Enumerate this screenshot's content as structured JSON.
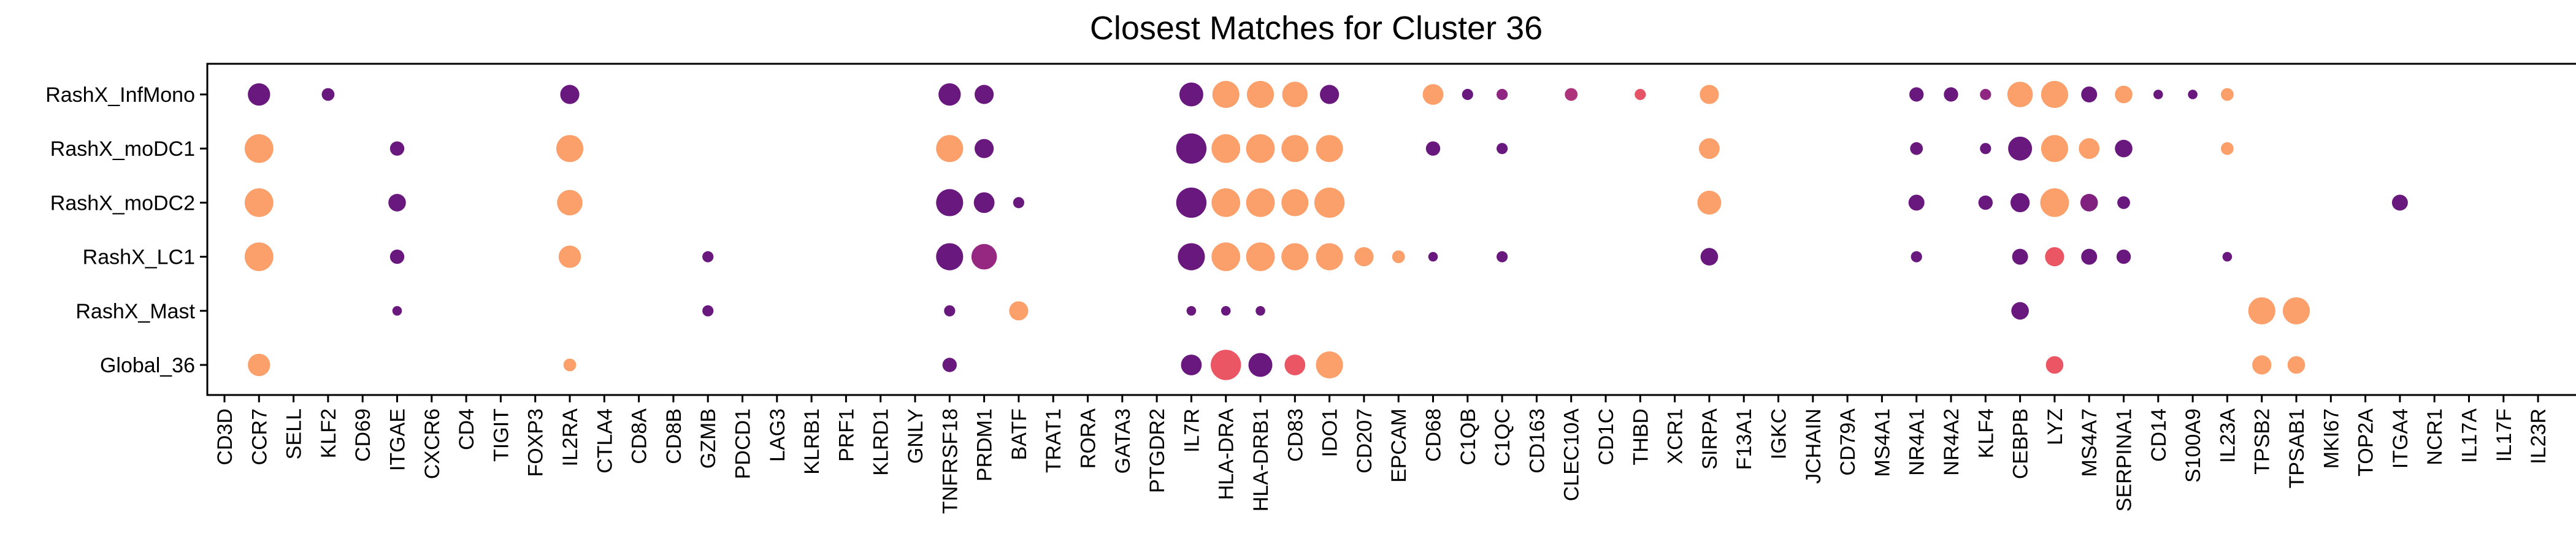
{
  "chart_data": {
    "type": "dotplot",
    "title": "Closest Matches for Cluster 36",
    "xlabel": "",
    "ylabel": "",
    "grid": false,
    "legend": "none",
    "rows": [
      "RashX_InfMono",
      "RashX_moDC1",
      "RashX_moDC2",
      "RashX_LC1",
      "RashX_Mast",
      "Global_36"
    ],
    "genes": [
      "CD3D",
      "CCR7",
      "SELL",
      "KLF2",
      "CD69",
      "ITGAE",
      "CXCR6",
      "CD4",
      "TIGIT",
      "FOXP3",
      "IL2RA",
      "CTLA4",
      "CD8A",
      "CD8B",
      "GZMB",
      "PDCD1",
      "LAG3",
      "KLRB1",
      "PRF1",
      "KLRD1",
      "GNLY",
      "TNFRSF18",
      "PRDM1",
      "BATF",
      "TRAT1",
      "RORA",
      "GATA3",
      "PTGDR2",
      "IL7R",
      "HLA-DRA",
      "HLA-DRB1",
      "CD83",
      "IDO1",
      "CD207",
      "EPCAM",
      "CD68",
      "C1QB",
      "C1QC",
      "CD163",
      "CLEC10A",
      "CD1C",
      "THBD",
      "XCR1",
      "SIRPA",
      "F13A1",
      "IGKC",
      "JCHAIN",
      "CD79A",
      "MS4A1",
      "NR4A1",
      "NR4A2",
      "KLF4",
      "CEBPB",
      "LYZ",
      "MS4A7",
      "SERPINA1",
      "CD14",
      "S100A9",
      "IL23A",
      "TPSB2",
      "TPSAB1",
      "MKI67",
      "TOP2A",
      "ITGA4",
      "NCR1",
      "IL17A",
      "IL17F",
      "IL23R"
    ],
    "size_note": "s = relative dot size (0-1), c = relative color value (0 = dark purple, 1 = light orange)",
    "points": [
      {
        "row": "RashX_InfMono",
        "gene": "CCR7",
        "s": 0.7,
        "c": 0.05
      },
      {
        "row": "RashX_InfMono",
        "gene": "KLF2",
        "s": 0.4,
        "c": 0.05
      },
      {
        "row": "RashX_InfMono",
        "gene": "IL2RA",
        "s": 0.6,
        "c": 0.05
      },
      {
        "row": "RashX_InfMono",
        "gene": "TNFRSF18",
        "s": 0.7,
        "c": 0.05
      },
      {
        "row": "RashX_InfMono",
        "gene": "PRDM1",
        "s": 0.6,
        "c": 0.05
      },
      {
        "row": "RashX_InfMono",
        "gene": "IL7R",
        "s": 0.75,
        "c": 0.05
      },
      {
        "row": "RashX_InfMono",
        "gene": "HLA-DRA",
        "s": 0.85,
        "c": 1.0
      },
      {
        "row": "RashX_InfMono",
        "gene": "HLA-DRB1",
        "s": 0.85,
        "c": 1.0
      },
      {
        "row": "RashX_InfMono",
        "gene": "CD83",
        "s": 0.8,
        "c": 1.0
      },
      {
        "row": "RashX_InfMono",
        "gene": "IDO1",
        "s": 0.6,
        "c": 0.05
      },
      {
        "row": "RashX_InfMono",
        "gene": "CD68",
        "s": 0.65,
        "c": 1.0
      },
      {
        "row": "RashX_InfMono",
        "gene": "C1QB",
        "s": 0.35,
        "c": 0.05
      },
      {
        "row": "RashX_InfMono",
        "gene": "C1QC",
        "s": 0.35,
        "c": 0.3
      },
      {
        "row": "RashX_InfMono",
        "gene": "CLEC10A",
        "s": 0.4,
        "c": 0.45
      },
      {
        "row": "RashX_InfMono",
        "gene": "THBD",
        "s": 0.35,
        "c": 0.7
      },
      {
        "row": "RashX_InfMono",
        "gene": "SIRPA",
        "s": 0.6,
        "c": 1.0
      },
      {
        "row": "RashX_InfMono",
        "gene": "NR4A1",
        "s": 0.45,
        "c": 0.05
      },
      {
        "row": "RashX_InfMono",
        "gene": "NR4A2",
        "s": 0.45,
        "c": 0.05
      },
      {
        "row": "RashX_InfMono",
        "gene": "KLF4",
        "s": 0.35,
        "c": 0.3
      },
      {
        "row": "RashX_InfMono",
        "gene": "CEBPB",
        "s": 0.8,
        "c": 1.0
      },
      {
        "row": "RashX_InfMono",
        "gene": "LYZ",
        "s": 0.85,
        "c": 1.0
      },
      {
        "row": "RashX_InfMono",
        "gene": "MS4A7",
        "s": 0.5,
        "c": 0.05
      },
      {
        "row": "RashX_InfMono",
        "gene": "SERPINA1",
        "s": 0.55,
        "c": 1.0
      },
      {
        "row": "RashX_InfMono",
        "gene": "CD14",
        "s": 0.3,
        "c": 0.05
      },
      {
        "row": "RashX_InfMono",
        "gene": "S100A9",
        "s": 0.3,
        "c": 0.05
      },
      {
        "row": "RashX_InfMono",
        "gene": "IL23A",
        "s": 0.4,
        "c": 1.0
      },
      {
        "row": "RashX_moDC1",
        "gene": "CCR7",
        "s": 0.9,
        "c": 1.0
      },
      {
        "row": "RashX_moDC1",
        "gene": "ITGAE",
        "s": 0.45,
        "c": 0.05
      },
      {
        "row": "RashX_moDC1",
        "gene": "IL2RA",
        "s": 0.85,
        "c": 1.0
      },
      {
        "row": "RashX_moDC1",
        "gene": "TNFRSF18",
        "s": 0.85,
        "c": 1.0
      },
      {
        "row": "RashX_moDC1",
        "gene": "PRDM1",
        "s": 0.6,
        "c": 0.05
      },
      {
        "row": "RashX_moDC1",
        "gene": "IL7R",
        "s": 0.95,
        "c": 0.05
      },
      {
        "row": "RashX_moDC1",
        "gene": "HLA-DRA",
        "s": 0.9,
        "c": 1.0
      },
      {
        "row": "RashX_moDC1",
        "gene": "HLA-DRB1",
        "s": 0.9,
        "c": 1.0
      },
      {
        "row": "RashX_moDC1",
        "gene": "CD83",
        "s": 0.85,
        "c": 1.0
      },
      {
        "row": "RashX_moDC1",
        "gene": "IDO1",
        "s": 0.85,
        "c": 1.0
      },
      {
        "row": "RashX_moDC1",
        "gene": "CD68",
        "s": 0.45,
        "c": 0.05
      },
      {
        "row": "RashX_moDC1",
        "gene": "C1QC",
        "s": 0.35,
        "c": 0.05
      },
      {
        "row": "RashX_moDC1",
        "gene": "SIRPA",
        "s": 0.65,
        "c": 1.0
      },
      {
        "row": "RashX_moDC1",
        "gene": "NR4A1",
        "s": 0.4,
        "c": 0.05
      },
      {
        "row": "RashX_moDC1",
        "gene": "KLF4",
        "s": 0.35,
        "c": 0.05
      },
      {
        "row": "RashX_moDC1",
        "gene": "CEBPB",
        "s": 0.75,
        "c": 0.05
      },
      {
        "row": "RashX_moDC1",
        "gene": "LYZ",
        "s": 0.85,
        "c": 1.0
      },
      {
        "row": "RashX_moDC1",
        "gene": "MS4A7",
        "s": 0.65,
        "c": 1.0
      },
      {
        "row": "RashX_moDC1",
        "gene": "SERPINA1",
        "s": 0.55,
        "c": 0.05
      },
      {
        "row": "RashX_moDC1",
        "gene": "IL23A",
        "s": 0.4,
        "c": 1.0
      },
      {
        "row": "RashX_moDC2",
        "gene": "CCR7",
        "s": 0.9,
        "c": 1.0
      },
      {
        "row": "RashX_moDC2",
        "gene": "ITGAE",
        "s": 0.55,
        "c": 0.05
      },
      {
        "row": "RashX_moDC2",
        "gene": "IL2RA",
        "s": 0.8,
        "c": 1.0
      },
      {
        "row": "RashX_moDC2",
        "gene": "TNFRSF18",
        "s": 0.85,
        "c": 0.05
      },
      {
        "row": "RashX_moDC2",
        "gene": "PRDM1",
        "s": 0.65,
        "c": 0.05
      },
      {
        "row": "RashX_moDC2",
        "gene": "BATF",
        "s": 0.35,
        "c": 0.05
      },
      {
        "row": "RashX_moDC2",
        "gene": "IL7R",
        "s": 0.95,
        "c": 0.05
      },
      {
        "row": "RashX_moDC2",
        "gene": "HLA-DRA",
        "s": 0.9,
        "c": 1.0
      },
      {
        "row": "RashX_moDC2",
        "gene": "HLA-DRB1",
        "s": 0.9,
        "c": 1.0
      },
      {
        "row": "RashX_moDC2",
        "gene": "CD83",
        "s": 0.85,
        "c": 1.0
      },
      {
        "row": "RashX_moDC2",
        "gene": "IDO1",
        "s": 0.95,
        "c": 1.0
      },
      {
        "row": "RashX_moDC2",
        "gene": "SIRPA",
        "s": 0.75,
        "c": 1.0
      },
      {
        "row": "RashX_moDC2",
        "gene": "NR4A1",
        "s": 0.5,
        "c": 0.05
      },
      {
        "row": "RashX_moDC2",
        "gene": "KLF4",
        "s": 0.45,
        "c": 0.05
      },
      {
        "row": "RashX_moDC2",
        "gene": "CEBPB",
        "s": 0.6,
        "c": 0.05
      },
      {
        "row": "RashX_moDC2",
        "gene": "LYZ",
        "s": 0.9,
        "c": 1.0
      },
      {
        "row": "RashX_moDC2",
        "gene": "MS4A7",
        "s": 0.55,
        "c": 0.2
      },
      {
        "row": "RashX_moDC2",
        "gene": "SERPINA1",
        "s": 0.4,
        "c": 0.05
      },
      {
        "row": "RashX_moDC2",
        "gene": "ITGA4",
        "s": 0.5,
        "c": 0.05
      },
      {
        "row": "RashX_LC1",
        "gene": "CCR7",
        "s": 0.9,
        "c": 1.0
      },
      {
        "row": "RashX_LC1",
        "gene": "ITGAE",
        "s": 0.45,
        "c": 0.05
      },
      {
        "row": "RashX_LC1",
        "gene": "IL2RA",
        "s": 0.7,
        "c": 1.0
      },
      {
        "row": "RashX_LC1",
        "gene": "GZMB",
        "s": 0.35,
        "c": 0.05
      },
      {
        "row": "RashX_LC1",
        "gene": "TNFRSF18",
        "s": 0.85,
        "c": 0.05
      },
      {
        "row": "RashX_LC1",
        "gene": "PRDM1",
        "s": 0.8,
        "c": 0.35
      },
      {
        "row": "RashX_LC1",
        "gene": "IL7R",
        "s": 0.85,
        "c": 0.05
      },
      {
        "row": "RashX_LC1",
        "gene": "HLA-DRA",
        "s": 0.9,
        "c": 1.0
      },
      {
        "row": "RashX_LC1",
        "gene": "HLA-DRB1",
        "s": 0.9,
        "c": 1.0
      },
      {
        "row": "RashX_LC1",
        "gene": "CD83",
        "s": 0.85,
        "c": 1.0
      },
      {
        "row": "RashX_LC1",
        "gene": "IDO1",
        "s": 0.85,
        "c": 1.0
      },
      {
        "row": "RashX_LC1",
        "gene": "CD207",
        "s": 0.6,
        "c": 1.0
      },
      {
        "row": "RashX_LC1",
        "gene": "EPCAM",
        "s": 0.4,
        "c": 1.0
      },
      {
        "row": "RashX_LC1",
        "gene": "CD68",
        "s": 0.3,
        "c": 0.05
      },
      {
        "row": "RashX_LC1",
        "gene": "C1QC",
        "s": 0.35,
        "c": 0.05
      },
      {
        "row": "RashX_LC1",
        "gene": "SIRPA",
        "s": 0.55,
        "c": 0.05
      },
      {
        "row": "RashX_LC1",
        "gene": "NR4A1",
        "s": 0.35,
        "c": 0.05
      },
      {
        "row": "RashX_LC1",
        "gene": "CEBPB",
        "s": 0.5,
        "c": 0.05
      },
      {
        "row": "RashX_LC1",
        "gene": "LYZ",
        "s": 0.6,
        "c": 0.72
      },
      {
        "row": "RashX_LC1",
        "gene": "MS4A7",
        "s": 0.5,
        "c": 0.05
      },
      {
        "row": "RashX_LC1",
        "gene": "SERPINA1",
        "s": 0.45,
        "c": 0.05
      },
      {
        "row": "RashX_LC1",
        "gene": "IL23A",
        "s": 0.3,
        "c": 0.05
      },
      {
        "row": "RashX_Mast",
        "gene": "ITGAE",
        "s": 0.3,
        "c": 0.05
      },
      {
        "row": "RashX_Mast",
        "gene": "GZMB",
        "s": 0.35,
        "c": 0.05
      },
      {
        "row": "RashX_Mast",
        "gene": "TNFRSF18",
        "s": 0.35,
        "c": 0.05
      },
      {
        "row": "RashX_Mast",
        "gene": "BATF",
        "s": 0.6,
        "c": 1.0
      },
      {
        "row": "RashX_Mast",
        "gene": "IL7R",
        "s": 0.3,
        "c": 0.05
      },
      {
        "row": "RashX_Mast",
        "gene": "HLA-DRA",
        "s": 0.3,
        "c": 0.05
      },
      {
        "row": "RashX_Mast",
        "gene": "HLA-DRB1",
        "s": 0.3,
        "c": 0.05
      },
      {
        "row": "RashX_Mast",
        "gene": "CEBPB",
        "s": 0.55,
        "c": 0.05
      },
      {
        "row": "RashX_Mast",
        "gene": "TPSB2",
        "s": 0.85,
        "c": 1.0
      },
      {
        "row": "RashX_Mast",
        "gene": "TPSAB1",
        "s": 0.85,
        "c": 1.0
      },
      {
        "row": "Global_36",
        "gene": "CCR7",
        "s": 0.7,
        "c": 1.0
      },
      {
        "row": "Global_36",
        "gene": "IL2RA",
        "s": 0.4,
        "c": 1.0
      },
      {
        "row": "Global_36",
        "gene": "TNFRSF18",
        "s": 0.45,
        "c": 0.05
      },
      {
        "row": "Global_36",
        "gene": "IL7R",
        "s": 0.65,
        "c": 0.05
      },
      {
        "row": "Global_36",
        "gene": "HLA-DRA",
        "s": 0.95,
        "c": 0.72
      },
      {
        "row": "Global_36",
        "gene": "HLA-DRB1",
        "s": 0.75,
        "c": 0.05
      },
      {
        "row": "Global_36",
        "gene": "CD83",
        "s": 0.65,
        "c": 0.72
      },
      {
        "row": "Global_36",
        "gene": "IDO1",
        "s": 0.85,
        "c": 1.0
      },
      {
        "row": "Global_36",
        "gene": "LYZ",
        "s": 0.55,
        "c": 0.72
      },
      {
        "row": "Global_36",
        "gene": "TPSB2",
        "s": 0.6,
        "c": 1.0
      },
      {
        "row": "Global_36",
        "gene": "TPSAB1",
        "s": 0.55,
        "c": 1.0
      }
    ]
  }
}
